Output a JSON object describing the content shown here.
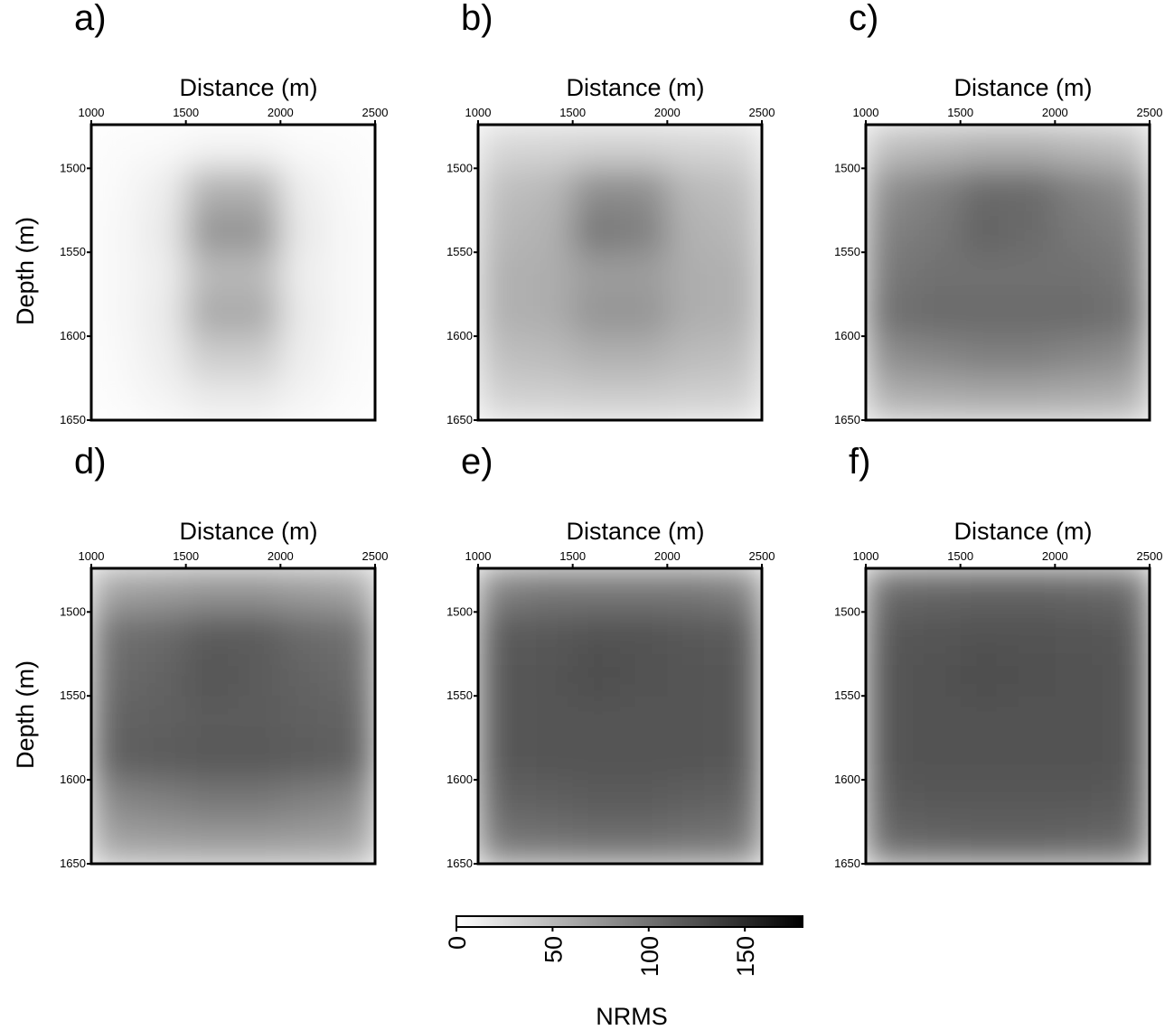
{
  "chart_data": [
    {
      "type": "heatmap",
      "title": "a)",
      "xlabel": "Distance (m)",
      "ylabel": "Depth (m)",
      "xbins": [
        1000,
        1250,
        1500,
        1750,
        2000,
        2250,
        2500
      ],
      "ybins": [
        1474,
        1500,
        1525,
        1550,
        1575,
        1600,
        1625,
        1650
      ],
      "xlim": [
        1000,
        2500
      ],
      "ylim": [
        1474,
        1650
      ],
      "xticks": [
        1000,
        1500,
        2000,
        2500
      ],
      "yticks": [
        1500,
        1550,
        1600,
        1650
      ],
      "values": [
        [
          3,
          4,
          8,
          8,
          4,
          3
        ],
        [
          4,
          12,
          55,
          55,
          12,
          4
        ],
        [
          5,
          15,
          75,
          75,
          15,
          5
        ],
        [
          5,
          12,
          50,
          50,
          12,
          5
        ],
        [
          5,
          14,
          60,
          60,
          14,
          5
        ],
        [
          4,
          12,
          35,
          35,
          12,
          4
        ],
        [
          3,
          8,
          15,
          15,
          8,
          3
        ]
      ]
    },
    {
      "type": "heatmap",
      "title": "b)",
      "xlabel": "Distance (m)",
      "xbins": [
        1000,
        1250,
        1500,
        1750,
        2000,
        2250,
        2500
      ],
      "ybins": [
        1474,
        1500,
        1525,
        1550,
        1575,
        1600,
        1625,
        1650
      ],
      "xlim": [
        1000,
        2500
      ],
      "ylim": [
        1474,
        1650
      ],
      "xticks": [
        1000,
        1500,
        2000,
        2500
      ],
      "yticks": [
        1500,
        1550,
        1600,
        1650
      ],
      "values": [
        [
          28,
          30,
          32,
          32,
          30,
          28
        ],
        [
          45,
          50,
          80,
          80,
          50,
          45
        ],
        [
          50,
          55,
          95,
          90,
          55,
          50
        ],
        [
          55,
          58,
          70,
          70,
          58,
          55
        ],
        [
          55,
          58,
          75,
          75,
          58,
          55
        ],
        [
          45,
          48,
          55,
          55,
          48,
          45
        ],
        [
          32,
          33,
          35,
          35,
          33,
          32
        ]
      ]
    },
    {
      "type": "heatmap",
      "title": "c)",
      "xlabel": "Distance (m)",
      "xbins": [
        1000,
        1250,
        1500,
        1750,
        2000,
        2250,
        2500
      ],
      "ybins": [
        1474,
        1500,
        1525,
        1550,
        1575,
        1600,
        1625,
        1650
      ],
      "xlim": [
        1000,
        2500
      ],
      "ylim": [
        1474,
        1650
      ],
      "xticks": [
        1000,
        1500,
        2000,
        2500
      ],
      "yticks": [
        1500,
        1550,
        1600,
        1650
      ],
      "values": [
        [
          45,
          50,
          55,
          55,
          50,
          45
        ],
        [
          80,
          90,
          105,
          105,
          90,
          80
        ],
        [
          90,
          95,
          110,
          105,
          95,
          90
        ],
        [
          95,
          100,
          100,
          100,
          100,
          95
        ],
        [
          100,
          105,
          105,
          105,
          105,
          100
        ],
        [
          80,
          85,
          90,
          90,
          85,
          80
        ],
        [
          55,
          58,
          60,
          60,
          58,
          55
        ]
      ]
    },
    {
      "type": "heatmap",
      "title": "d)",
      "xlabel": "Distance (m)",
      "ylabel": "Depth (m)",
      "xbins": [
        1000,
        1250,
        1500,
        1750,
        2000,
        2250,
        2500
      ],
      "ybins": [
        1474,
        1500,
        1525,
        1550,
        1575,
        1600,
        1625,
        1650
      ],
      "xlim": [
        1000,
        2500
      ],
      "ylim": [
        1474,
        1650
      ],
      "xticks": [
        1000,
        1500,
        2000,
        2500
      ],
      "yticks": [
        1500,
        1550,
        1600,
        1650
      ],
      "values": [
        [
          65,
          70,
          75,
          75,
          70,
          65
        ],
        [
          100,
          105,
          115,
          115,
          105,
          100
        ],
        [
          105,
          110,
          120,
          115,
          110,
          105
        ],
        [
          110,
          112,
          115,
          115,
          112,
          110
        ],
        [
          112,
          115,
          118,
          118,
          115,
          112
        ],
        [
          85,
          90,
          95,
          95,
          90,
          85
        ],
        [
          65,
          68,
          70,
          70,
          68,
          65
        ]
      ]
    },
    {
      "type": "heatmap",
      "title": "e)",
      "xlabel": "Distance (m)",
      "xbins": [
        1000,
        1250,
        1500,
        1750,
        2000,
        2250,
        2500
      ],
      "ybins": [
        1474,
        1500,
        1525,
        1550,
        1575,
        1600,
        1625,
        1650
      ],
      "xlim": [
        1000,
        2500
      ],
      "ylim": [
        1474,
        1650
      ],
      "xticks": [
        1000,
        1500,
        2000,
        2500
      ],
      "yticks": [
        1500,
        1550,
        1600,
        1650
      ],
      "values": [
        [
          90,
          95,
          95,
          95,
          95,
          90
        ],
        [
          115,
          118,
          122,
          122,
          118,
          115
        ],
        [
          118,
          120,
          125,
          122,
          120,
          118
        ],
        [
          118,
          120,
          120,
          120,
          120,
          118
        ],
        [
          118,
          120,
          120,
          120,
          120,
          118
        ],
        [
          110,
          112,
          115,
          115,
          112,
          110
        ],
        [
          95,
          98,
          100,
          100,
          98,
          95
        ]
      ]
    },
    {
      "type": "heatmap",
      "title": "f)",
      "xlabel": "Distance (m)",
      "xbins": [
        1000,
        1250,
        1500,
        1750,
        2000,
        2250,
        2500
      ],
      "ybins": [
        1474,
        1500,
        1525,
        1550,
        1575,
        1600,
        1625,
        1650
      ],
      "xlim": [
        1000,
        2500
      ],
      "ylim": [
        1474,
        1650
      ],
      "xticks": [
        1000,
        1500,
        2000,
        2500
      ],
      "yticks": [
        1500,
        1550,
        1600,
        1650
      ],
      "values": [
        [
          105,
          108,
          110,
          110,
          108,
          105
        ],
        [
          118,
          120,
          122,
          122,
          120,
          118
        ],
        [
          120,
          122,
          125,
          123,
          122,
          120
        ],
        [
          120,
          122,
          122,
          122,
          122,
          120
        ],
        [
          120,
          122,
          122,
          122,
          122,
          120
        ],
        [
          115,
          118,
          118,
          118,
          118,
          115
        ],
        [
          105,
          108,
          110,
          110,
          108,
          105
        ]
      ]
    }
  ],
  "colorbar": {
    "label": "NRMS",
    "lim": [
      0,
      180
    ],
    "ticks": [
      0,
      50,
      100,
      150
    ],
    "colors": [
      "#ffffff",
      "#000000"
    ]
  }
}
